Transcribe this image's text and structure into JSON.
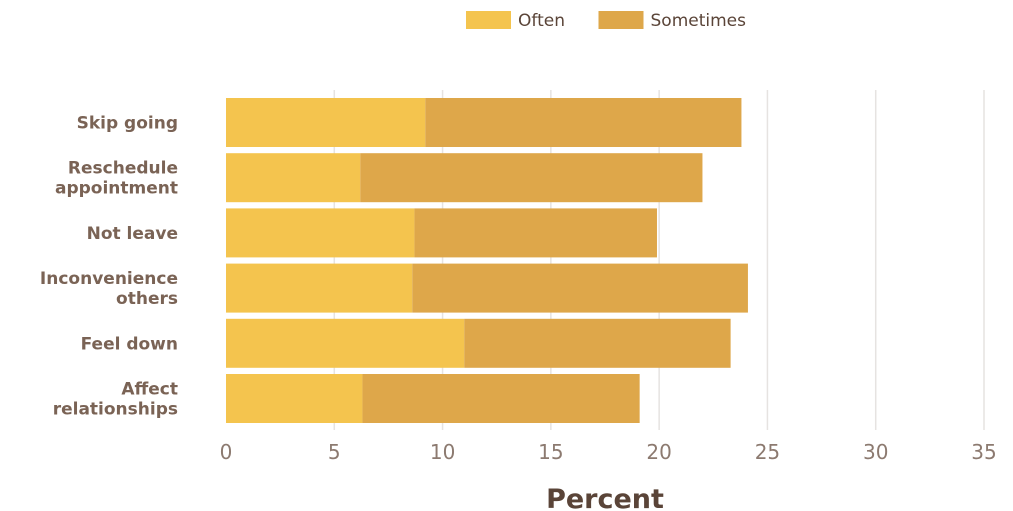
{
  "chart_data": {
    "type": "bar",
    "orientation": "horizontal",
    "stacked": true,
    "categories": [
      [
        "Skip going"
      ],
      [
        "Reschedule",
        "appointment"
      ],
      [
        "Not leave"
      ],
      [
        "Inconvenience",
        "others"
      ],
      [
        "Feel down"
      ],
      [
        "Affect",
        "relationships"
      ]
    ],
    "series": [
      {
        "name": "Often",
        "color": "#f4c44e",
        "values": [
          9.2,
          6.2,
          8.7,
          8.6,
          11.0,
          6.3
        ]
      },
      {
        "name": "Sometimes",
        "color": "#dea74a",
        "values": [
          14.6,
          15.8,
          11.2,
          15.5,
          12.3,
          12.8
        ]
      }
    ],
    "xlabel": "Percent",
    "ylabel": "",
    "xlim": [
      0,
      35
    ],
    "xticks": [
      0,
      5,
      10,
      15,
      20,
      25,
      30,
      35
    ],
    "grid": true,
    "legend_position": "top"
  }
}
